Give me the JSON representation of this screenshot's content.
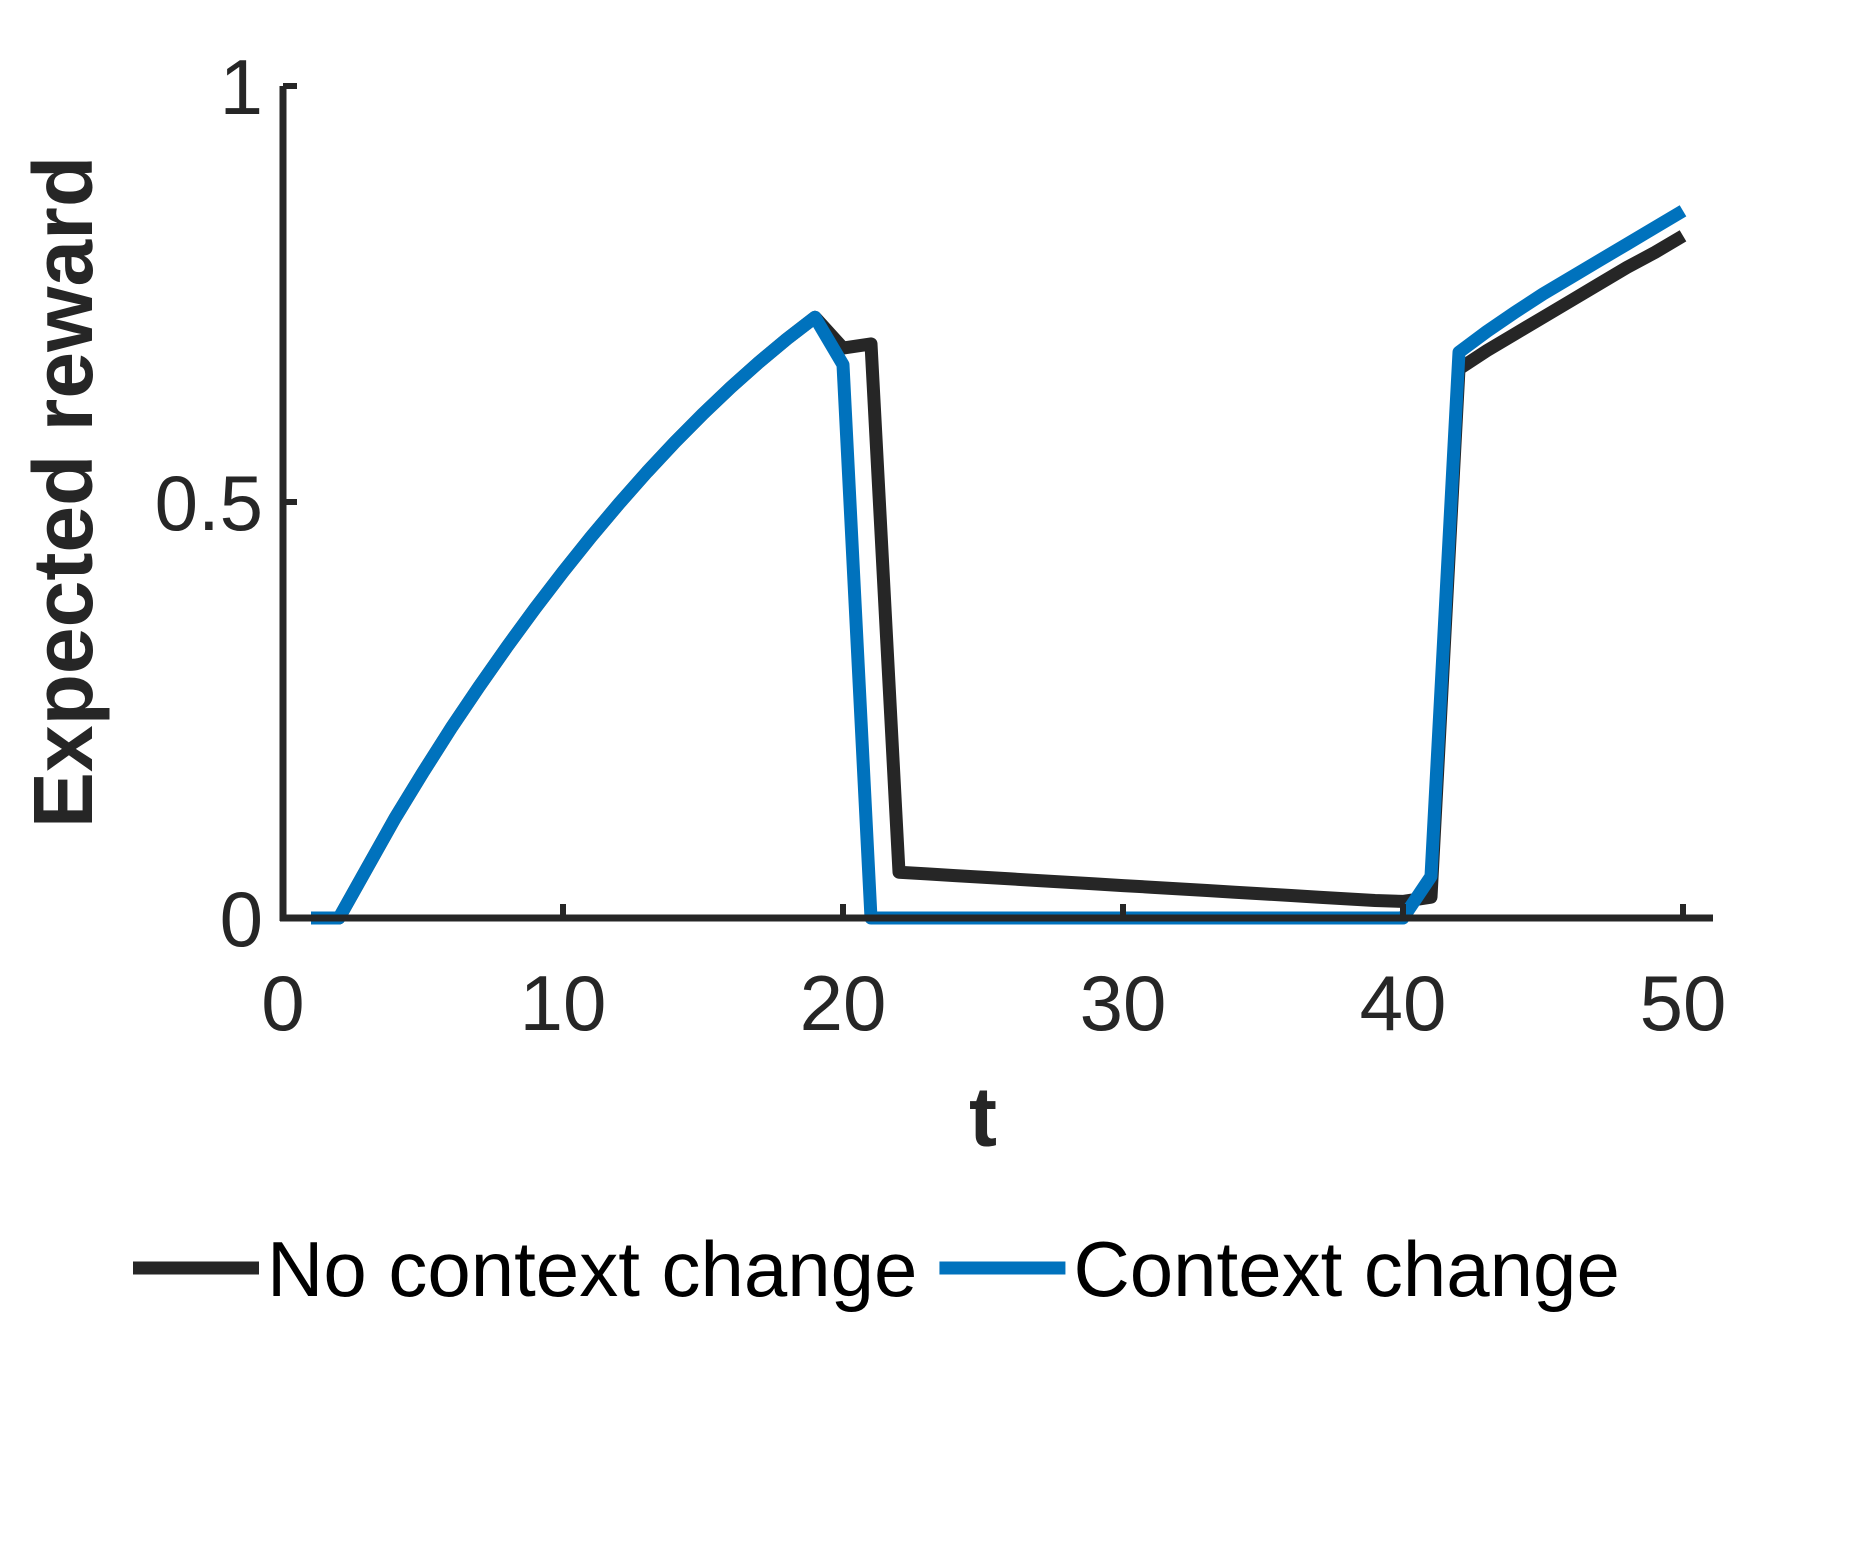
{
  "chart_data": {
    "type": "line",
    "xlabel": "t",
    "ylabel": "Expected reward",
    "xlim": [
      0,
      50
    ],
    "ylim": [
      0,
      1
    ],
    "xticks": [
      "0",
      "10",
      "20",
      "30",
      "40",
      "50"
    ],
    "yticks": [
      "0",
      "0.5",
      "1"
    ],
    "grid": false,
    "legend_position": "bottom",
    "series": [
      {
        "name": "No context change",
        "color": "#262626",
        "x": [
          1,
          2,
          3,
          4,
          5,
          6,
          7,
          8,
          9,
          10,
          11,
          12,
          13,
          14,
          15,
          16,
          17,
          18,
          19,
          20,
          21,
          22,
          23,
          24,
          25,
          26,
          27,
          28,
          29,
          30,
          31,
          32,
          33,
          34,
          35,
          36,
          37,
          38,
          39,
          40,
          41,
          42,
          43,
          44,
          45,
          46,
          47,
          48,
          49,
          50
        ],
        "values": [
          0,
          0,
          0.06,
          0.12,
          0.175,
          0.228,
          0.278,
          0.326,
          0.372,
          0.416,
          0.458,
          0.498,
          0.536,
          0.572,
          0.606,
          0.638,
          0.668,
          0.696,
          0.722,
          0.685,
          0.69,
          0.055,
          0.053,
          0.051,
          0.049,
          0.047,
          0.045,
          0.043,
          0.041,
          0.039,
          0.037,
          0.035,
          0.033,
          0.031,
          0.029,
          0.027,
          0.025,
          0.023,
          0.021,
          0.02,
          0.025,
          0.66,
          0.682,
          0.702,
          0.722,
          0.742,
          0.762,
          0.782,
          0.8,
          0.82
        ]
      },
      {
        "name": "Context change",
        "color": "#0072BD",
        "x": [
          1,
          2,
          3,
          4,
          5,
          6,
          7,
          8,
          9,
          10,
          11,
          12,
          13,
          14,
          15,
          16,
          17,
          18,
          19,
          20,
          21,
          22,
          23,
          24,
          25,
          26,
          27,
          28,
          29,
          30,
          31,
          32,
          33,
          34,
          35,
          36,
          37,
          38,
          39,
          40,
          41,
          42,
          43,
          44,
          45,
          46,
          47,
          48,
          49,
          50
        ],
        "values": [
          0,
          0,
          0.06,
          0.12,
          0.175,
          0.228,
          0.278,
          0.326,
          0.372,
          0.416,
          0.458,
          0.498,
          0.536,
          0.572,
          0.606,
          0.638,
          0.668,
          0.696,
          0.722,
          0.665,
          0,
          0,
          0,
          0,
          0,
          0,
          0,
          0,
          0,
          0,
          0,
          0,
          0,
          0,
          0,
          0,
          0,
          0,
          0,
          0,
          0.05,
          0.68,
          0.705,
          0.728,
          0.75,
          0.77,
          0.79,
          0.81,
          0.83,
          0.85
        ]
      }
    ]
  }
}
